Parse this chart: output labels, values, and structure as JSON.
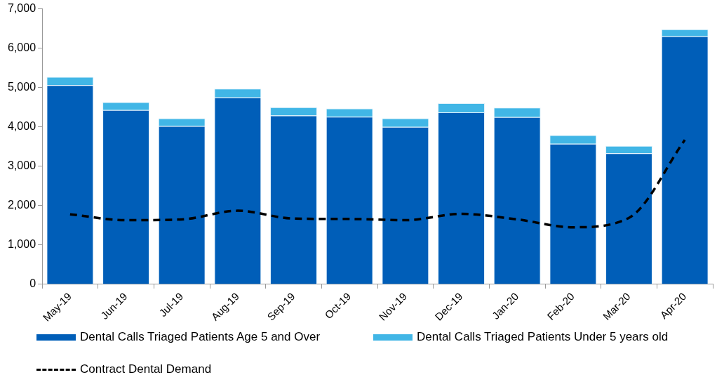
{
  "chart_data": {
    "type": "bar",
    "stacked": true,
    "categories": [
      "May-19",
      "Jun-19",
      "Jul-19",
      "Aug-19",
      "Sep-19",
      "Oct-19",
      "Nov-19",
      "Dec-19",
      "Jan-20",
      "Feb-20",
      "Mar-20",
      "Apr-20"
    ],
    "series": [
      {
        "name": "Dental Calls Triaged Patients Age 5 and Over",
        "color": "#005eb8",
        "values": [
          5060,
          4430,
          4020,
          4750,
          4290,
          4260,
          4000,
          4370,
          4250,
          3570,
          3330,
          6300
        ]
      },
      {
        "name": "Dental Calls Triaged Patients Under 5 years old",
        "color": "#41b6e6",
        "values": [
          210,
          200,
          200,
          220,
          210,
          210,
          220,
          230,
          240,
          220,
          190,
          180
        ]
      },
      {
        "name": "Contract Dental Demand",
        "type": "line",
        "color": "#000000",
        "line_style": "dashed",
        "marker": "none",
        "values": [
          1780,
          1630,
          1650,
          1870,
          1670,
          1660,
          1630,
          1790,
          1650,
          1450,
          1690,
          3670
        ]
      }
    ],
    "ylim": [
      0,
      7000
    ],
    "yticks": [
      0,
      {
        "value": 1000,
        "label": "1,000"
      },
      {
        "value": 2000,
        "label": "2,000"
      },
      {
        "value": 3000,
        "label": "3,000"
      },
      {
        "value": 4000,
        "label": "4,000"
      },
      {
        "value": 5000,
        "label": "5,000"
      },
      {
        "value": 6000,
        "label": "6,000"
      },
      {
        "value": 7000,
        "label": "7,000"
      }
    ],
    "grid": false,
    "legend": "bottom"
  }
}
